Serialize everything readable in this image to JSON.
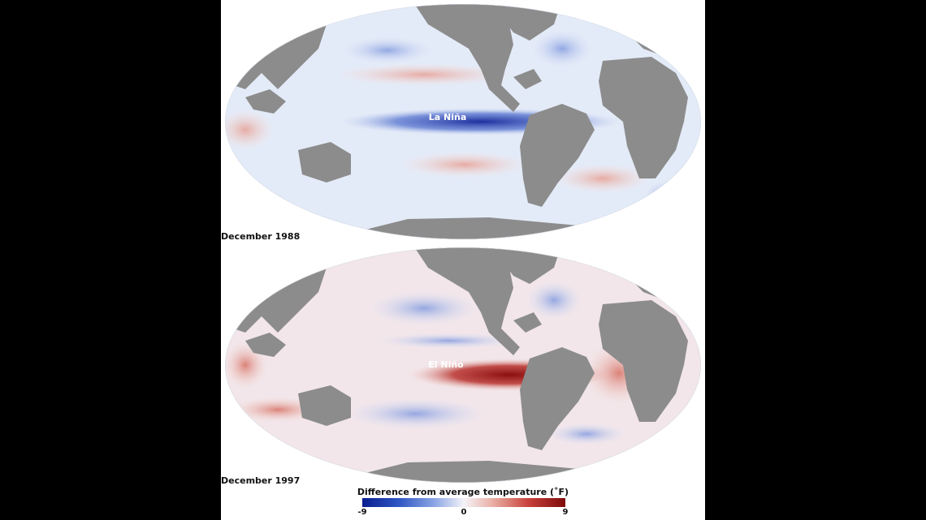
{
  "maps": [
    {
      "date_label": "December 1988",
      "annotation": "La Niña"
    },
    {
      "date_label": "December 1997",
      "annotation": "El Niño"
    }
  ],
  "legend": {
    "title": "Difference from average temperature (˚F)",
    "min": -9,
    "mid": 0,
    "max": 9,
    "colors": {
      "cold": "#0a1e8f",
      "neutral": "#f4f4f8",
      "warm": "#7d0b0b",
      "land": "#8c8c8c"
    }
  }
}
